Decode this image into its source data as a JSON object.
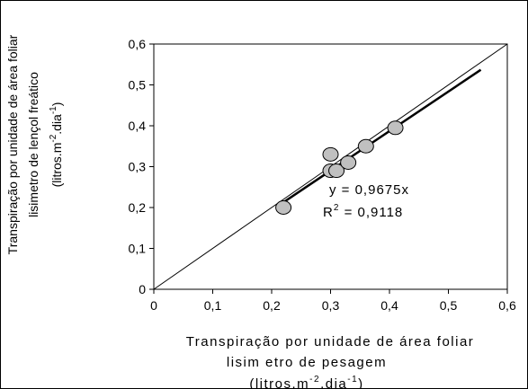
{
  "chart_data": {
    "type": "scatter",
    "xlabel": [
      "Transpiração por unidade de área foliar",
      "lisim etro de pesagem",
      "(litros.m",
      "-2",
      ".dia",
      "-1",
      ")"
    ],
    "ylabel": [
      "Transpiração por unidade de área foliar",
      "lisimetro de lençol freático",
      "(litros.m",
      "-2",
      ".dia",
      "-1",
      ")"
    ],
    "xlim": [
      0,
      0.6
    ],
    "ylim": [
      0,
      0.6
    ],
    "x_ticks": [
      "0",
      "0,1",
      "0,2",
      "0,3",
      "0,4",
      "0,5",
      "0,6"
    ],
    "y_ticks": [
      "0",
      "0,1",
      "0,2",
      "0,3",
      "0,4",
      "0,5",
      "0,6"
    ],
    "points": [
      {
        "x": 0.22,
        "y": 0.2
      },
      {
        "x": 0.3,
        "y": 0.29
      },
      {
        "x": 0.3,
        "y": 0.33
      },
      {
        "x": 0.31,
        "y": 0.29
      },
      {
        "x": 0.33,
        "y": 0.31
      },
      {
        "x": 0.36,
        "y": 0.35
      },
      {
        "x": 0.41,
        "y": 0.395
      }
    ],
    "reference_line": {
      "from": [
        0,
        0
      ],
      "to": [
        0.6,
        0.6
      ]
    },
    "trendline": {
      "slope": 0.9675,
      "x_from": 0.22,
      "x_to": 0.555
    },
    "equation": "y = 0,9675x",
    "r2_label": "R",
    "r2_sup": "2",
    "r2_value": " = 0,9118",
    "grid": false,
    "colors": {
      "marker_fill": "#c0c0c0",
      "marker_stroke": "#000000",
      "line": "#000000"
    }
  }
}
